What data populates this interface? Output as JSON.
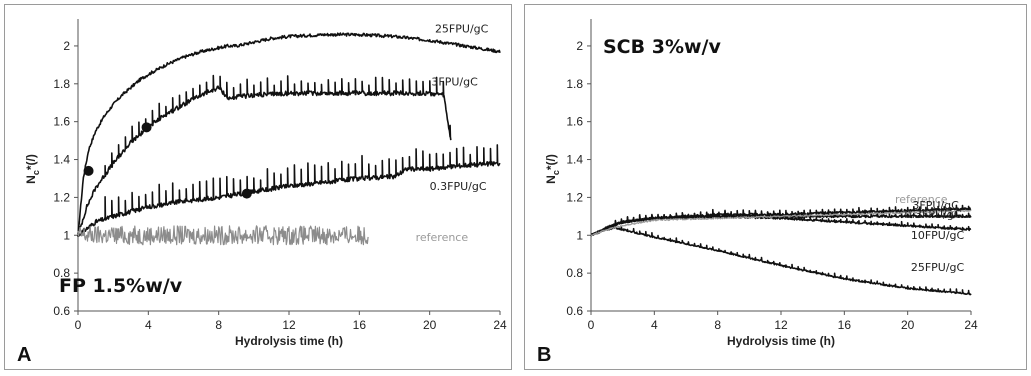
{
  "chart_data": [
    {
      "type": "line",
      "panel_letter": "A",
      "title": "FP 1.5%w/v",
      "xlabel": "Hydrolysis time (h)",
      "ylabel": "N",
      "ylabel_sub": "c",
      "ylabel_suffix": "*(/)",
      "xlim": [
        0,
        24
      ],
      "ylim": [
        0.6,
        2.1
      ],
      "xticks": [
        "0",
        "4",
        "8",
        "12",
        "16",
        "20",
        "24"
      ],
      "yticks": [
        "0.6",
        "0.8",
        "1",
        "1.2",
        "1.4",
        "1.6",
        "1.8",
        "2"
      ],
      "grid": false,
      "legend": "inline labels",
      "series": [
        {
          "name": "25FPU/gC",
          "color": "#111111",
          "x": [
            0,
            0.3,
            0.6,
            1,
            1.5,
            2,
            2.5,
            3,
            3.5,
            4,
            5,
            6,
            7,
            8,
            8.5,
            9,
            10,
            11,
            12,
            14,
            16,
            18,
            20,
            22,
            24
          ],
          "y": [
            1.0,
            1.3,
            1.45,
            1.55,
            1.63,
            1.69,
            1.74,
            1.78,
            1.82,
            1.85,
            1.9,
            1.94,
            1.97,
            1.99,
            2.0,
            2.0,
            2.02,
            2.04,
            2.05,
            2.06,
            2.06,
            2.05,
            2.03,
            2.0,
            1.97
          ],
          "noise": 0.008
        },
        {
          "name": "3FPU/gC",
          "color": "#111111",
          "x": [
            0,
            0.5,
            1,
            2,
            3,
            4,
            5,
            6,
            7,
            8,
            8.6,
            9,
            10,
            12,
            14,
            16,
            18,
            20,
            20.8,
            21.2
          ],
          "y": [
            1.0,
            1.15,
            1.25,
            1.38,
            1.49,
            1.57,
            1.64,
            1.69,
            1.74,
            1.78,
            1.72,
            1.73,
            1.74,
            1.75,
            1.75,
            1.75,
            1.75,
            1.75,
            1.74,
            1.5
          ],
          "noise": 0.012,
          "spikes": 0.08
        },
        {
          "name": "0.3FPU/gC",
          "color": "#111111",
          "x": [
            0,
            1,
            2,
            4,
            6,
            8,
            10,
            12,
            14,
            16,
            18,
            18.7,
            20,
            22,
            24
          ],
          "y": [
            1.0,
            1.07,
            1.1,
            1.15,
            1.18,
            1.2,
            1.23,
            1.26,
            1.28,
            1.3,
            1.31,
            1.35,
            1.35,
            1.37,
            1.38
          ],
          "noise": 0.012,
          "spikes": 0.1
        },
        {
          "name": "reference",
          "color": "#8c8c8c",
          "x": [
            0,
            4,
            8,
            12,
            16,
            16.5
          ],
          "y": [
            1.0,
            1.0,
            1.0,
            1.0,
            1.0,
            1.0
          ],
          "noise": 0.05
        }
      ],
      "markers": [
        {
          "x": 0.6,
          "y": 1.34
        },
        {
          "x": 3.9,
          "y": 1.57
        },
        {
          "x": 9.6,
          "y": 1.22
        }
      ],
      "labels": [
        {
          "text": "25FPU/gC",
          "x": 20.3,
          "y": 2.07,
          "series": "25FPU/gC"
        },
        {
          "text": "3FPU/gC",
          "x": 20.1,
          "y": 1.79,
          "series": "3FPU/gC"
        },
        {
          "text": "0.3FPU/gC",
          "x": 20.0,
          "y": 1.24,
          "series": "0.3FPU/gC"
        },
        {
          "text": "reference",
          "x": 19.2,
          "y": 0.97,
          "series": "reference"
        }
      ]
    },
    {
      "type": "line",
      "panel_letter": "B",
      "title": "SCB 3%w/v",
      "xlabel": "Hydrolysis time (h)",
      "ylabel": "N",
      "ylabel_sub": "c",
      "ylabel_suffix": "*(/)",
      "xlim": [
        0,
        24
      ],
      "ylim": [
        0.6,
        2.1
      ],
      "xticks": [
        "0",
        "4",
        "8",
        "12",
        "16",
        "20",
        "24"
      ],
      "yticks": [
        "0.6",
        "0.8",
        "1",
        "1.2",
        "1.4",
        "1.6",
        "1.8",
        "2"
      ],
      "grid": false,
      "legend": "inline labels",
      "series": [
        {
          "name": "3FPU/gC",
          "color": "#111111",
          "x": [
            0,
            1,
            2,
            4,
            8,
            12,
            16,
            20,
            24
          ],
          "y": [
            1.0,
            1.04,
            1.07,
            1.09,
            1.11,
            1.11,
            1.12,
            1.13,
            1.14
          ],
          "noise": 0.006,
          "spikes": 0.02
        },
        {
          "name": "0.3FPU/gC",
          "color": "#111111",
          "x": [
            0,
            1,
            2,
            4,
            8,
            12,
            16,
            20,
            24
          ],
          "y": [
            1.0,
            1.04,
            1.07,
            1.09,
            1.1,
            1.1,
            1.1,
            1.1,
            1.1
          ],
          "noise": 0.006,
          "spikes": 0.02
        },
        {
          "name": "10FPU/gC",
          "color": "#111111",
          "x": [
            0,
            1,
            2,
            4,
            8,
            12,
            16,
            20,
            24
          ],
          "y": [
            1.0,
            1.04,
            1.07,
            1.09,
            1.1,
            1.09,
            1.07,
            1.05,
            1.03
          ],
          "noise": 0.005,
          "spikes": 0.015
        },
        {
          "name": "25FPU/gC",
          "color": "#111111",
          "x": [
            0,
            1,
            1.5,
            2,
            4,
            8,
            12,
            16,
            20,
            24
          ],
          "y": [
            1.0,
            1.03,
            1.04,
            1.03,
            0.99,
            0.92,
            0.84,
            0.77,
            0.72,
            0.69
          ],
          "noise": 0.004,
          "spikes": 0.015
        },
        {
          "name": "reference",
          "color": "#9a9a9a",
          "x": [
            0,
            1,
            2,
            4,
            8,
            12,
            16,
            20,
            24
          ],
          "y": [
            1.0,
            1.03,
            1.05,
            1.08,
            1.09,
            1.1,
            1.11,
            1.12,
            1.13
          ],
          "noise": 0.004
        }
      ],
      "markers": [],
      "labels": [
        {
          "text": "reference",
          "x": 19.2,
          "y": 1.17,
          "series": "reference"
        },
        {
          "text": "3FPU/gC",
          "x": 20.3,
          "y": 1.14,
          "series": "3FPU/gC"
        },
        {
          "text": "0.3FPU/gC",
          "x": 19.8,
          "y": 1.09,
          "series": "0.3FPU/gC"
        },
        {
          "text": "10FPU/gC",
          "x": 20.2,
          "y": 0.98,
          "series": "10FPU/gC"
        },
        {
          "text": "25FPU/gC",
          "x": 20.2,
          "y": 0.81,
          "series": "25FPU/gC"
        }
      ]
    }
  ]
}
